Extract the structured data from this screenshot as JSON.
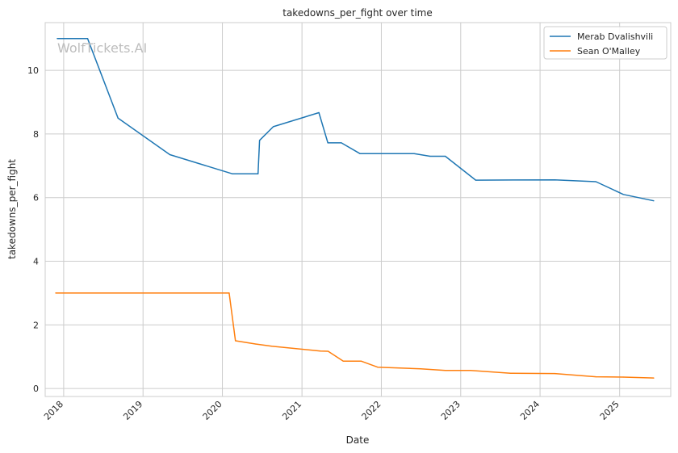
{
  "watermark": "WolfTickets.AI",
  "chart_data": {
    "type": "line",
    "title": "takedowns_per_fight over time",
    "xlabel": "Date",
    "ylabel": "takedowns_per_fight",
    "x_type": "date",
    "xlim": [
      "2017-10-08",
      "2025-08-24"
    ],
    "ylim": [
      -0.25,
      11.5
    ],
    "x_ticks": [
      "2018-01-01",
      "2019-01-01",
      "2020-01-01",
      "2021-01-01",
      "2022-01-01",
      "2023-01-01",
      "2024-01-01",
      "2025-01-01"
    ],
    "x_tick_labels": [
      "2018",
      "2019",
      "2020",
      "2021",
      "2022",
      "2023",
      "2024",
      "2025"
    ],
    "y_ticks": [
      0,
      2,
      4,
      6,
      8,
      10
    ],
    "y_tick_labels": [
      "0",
      "2",
      "4",
      "6",
      "8",
      "10"
    ],
    "grid": true,
    "legend_position": "top-right",
    "series": [
      {
        "name": "Merab Dvalishvili",
        "color": "#1f77b4",
        "points": [
          [
            "2017-12-02",
            11.0
          ],
          [
            "2018-04-21",
            11.0
          ],
          [
            "2018-09-08",
            8.5
          ],
          [
            "2019-05-04",
            7.35
          ],
          [
            "2020-02-15",
            6.75
          ],
          [
            "2020-06-13",
            6.75
          ],
          [
            "2020-06-20",
            7.8
          ],
          [
            "2020-08-22",
            8.23
          ],
          [
            "2021-03-20",
            8.67
          ],
          [
            "2021-04-30",
            7.72
          ],
          [
            "2021-07-01",
            7.72
          ],
          [
            "2021-09-25",
            7.38
          ],
          [
            "2022-06-01",
            7.38
          ],
          [
            "2022-08-13",
            7.3
          ],
          [
            "2022-10-22",
            7.3
          ],
          [
            "2023-03-11",
            6.55
          ],
          [
            "2024-03-09",
            6.56
          ],
          [
            "2024-09-14",
            6.5
          ],
          [
            "2025-01-18",
            6.1
          ],
          [
            "2025-06-07",
            5.9
          ]
        ]
      },
      {
        "name": "Sean O'Malley",
        "color": "#ff7f0e",
        "points": [
          [
            "2017-11-25",
            3.0
          ],
          [
            "2020-02-01",
            3.0
          ],
          [
            "2020-03-01",
            1.5
          ],
          [
            "2020-06-01",
            1.4
          ],
          [
            "2020-08-15",
            1.33
          ],
          [
            "2021-03-27",
            1.18
          ],
          [
            "2021-05-01",
            1.17
          ],
          [
            "2021-07-10",
            0.86
          ],
          [
            "2021-10-01",
            0.86
          ],
          [
            "2021-12-15",
            0.67
          ],
          [
            "2022-07-01",
            0.62
          ],
          [
            "2022-10-22",
            0.57
          ],
          [
            "2023-02-15",
            0.57
          ],
          [
            "2023-08-19",
            0.48
          ],
          [
            "2024-03-09",
            0.47
          ],
          [
            "2024-09-14",
            0.37
          ],
          [
            "2025-01-18",
            0.36
          ],
          [
            "2025-06-07",
            0.33
          ]
        ]
      }
    ]
  }
}
